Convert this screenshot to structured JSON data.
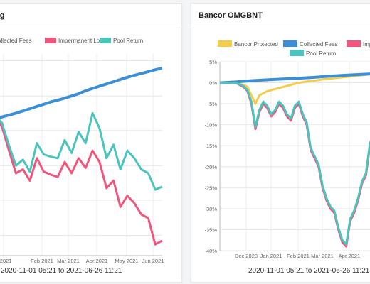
{
  "colors": {
    "bancor_protected": "#f5cc4a",
    "collected_fees": "#3b8fd9",
    "impermanent_loss": "#f2557c",
    "pool_return": "#4bc4bd"
  },
  "left_panel": {
    "title": "ng",
    "range_label": "2020-11-01 05:21 to 2021-06-26 11:21"
  },
  "right_panel": {
    "title": "Bancor OMGBNT",
    "range_label": "2020-11-01 05:21 to 2021-06-26 11:21"
  },
  "chart_data": [
    {
      "type": "line",
      "title": "ng",
      "legend": [
        "ollected Fees",
        "Impermanent Loss",
        "Pool Return"
      ],
      "x_ticks": [
        "n 2021",
        "Feb 2021",
        "Mar 2021",
        "Apr 2021",
        "May 2021",
        "Jun 2021"
      ],
      "series": [
        {
          "name": "Collected Fees",
          "color": "#3b8fd9",
          "x": [
            0,
            10,
            20,
            30,
            40,
            50,
            60,
            70,
            80,
            90,
            100,
            110,
            120,
            130,
            140,
            150,
            160,
            170,
            180,
            190,
            200,
            210,
            220,
            230,
            240
          ],
          "y": [
            0.2,
            0.5,
            0.75,
            1.0,
            1.3,
            1.6,
            1.9,
            2.2,
            2.5,
            2.75,
            3.0,
            3.3,
            3.6,
            4.0,
            4.3,
            4.6,
            4.9,
            5.2,
            5.5,
            5.8,
            6.05,
            6.3,
            6.55,
            6.8,
            7.0
          ]
        },
        {
          "name": "Impermanent Loss",
          "color": "#f2557c",
          "x": [
            0,
            10,
            20,
            30,
            40,
            50,
            60,
            70,
            80,
            90,
            100,
            110,
            120,
            130,
            140,
            150,
            160,
            170,
            180,
            190,
            200,
            210,
            220,
            230,
            240
          ],
          "y": [
            0.5,
            -0.8,
            -4.0,
            -7.0,
            -6.5,
            -8.0,
            -5.0,
            -6.8,
            -7.2,
            -7.5,
            -5.5,
            -7.0,
            -5.0,
            -6.3,
            -4.0,
            -5.5,
            -9.0,
            -8.0,
            -11.5,
            -10.0,
            -11.0,
            -12.5,
            -13.0,
            -16.5,
            -16.0
          ]
        },
        {
          "name": "Pool Return",
          "color": "#4bc4bd",
          "x": [
            0,
            10,
            20,
            30,
            40,
            50,
            60,
            70,
            80,
            90,
            100,
            110,
            120,
            130,
            140,
            150,
            160,
            170,
            180,
            190,
            200,
            210,
            220,
            230,
            240
          ],
          "y": [
            0.7,
            -0.3,
            -3.3,
            -6.0,
            -5.2,
            -6.8,
            -3.0,
            -4.5,
            -4.8,
            -5.0,
            -2.6,
            -4.3,
            -1.5,
            -3.0,
            1.0,
            -1.0,
            -5.0,
            -3.2,
            -6.5,
            -4.0,
            -5.0,
            -6.5,
            -7.0,
            -9.2,
            -8.8
          ]
        }
      ]
    },
    {
      "type": "line",
      "title": "Bancor OMGBNT",
      "legend": [
        "Bancor Protected",
        "Collected Fees",
        "Imp",
        "Pool Return"
      ],
      "y_ticks": [
        "5%",
        "0%",
        "-5%",
        "-10%",
        "-15%",
        "-20%",
        "-25%",
        "-30%",
        "-35%",
        "-40%"
      ],
      "ylim": [
        -40,
        5
      ],
      "x_ticks": [
        "Dec 2020",
        "Jan 2021",
        "Feb 2021",
        "Mar 2021",
        "Apr 2021"
      ],
      "series": [
        {
          "name": "Bancor Protected",
          "color": "#f5cc4a",
          "x": [
            0,
            10,
            20,
            30,
            35,
            40,
            45,
            50,
            60,
            70,
            80,
            90,
            100,
            110,
            120,
            130,
            140,
            150,
            160,
            170,
            180,
            190,
            200
          ],
          "y": [
            0.0,
            0.0,
            0.0,
            -0.5,
            -1.0,
            -3.0,
            -5.0,
            -3.0,
            -2.0,
            -1.5,
            -1.0,
            -0.5,
            0.0,
            0.3,
            0.5,
            0.8,
            1.0,
            1.2,
            1.4,
            1.6,
            1.8,
            2.0,
            2.2
          ]
        },
        {
          "name": "Collected Fees",
          "color": "#3b8fd9",
          "x": [
            0,
            20,
            40,
            60,
            80,
            100,
            120,
            140,
            160,
            180,
            200
          ],
          "y": [
            0.0,
            0.2,
            0.5,
            0.7,
            0.9,
            1.1,
            1.3,
            1.6,
            1.8,
            2.0,
            2.2
          ]
        },
        {
          "name": "Imp",
          "color": "#f2557c",
          "x": [
            0,
            10,
            20,
            30,
            35,
            40,
            45,
            50,
            55,
            60,
            65,
            70,
            75,
            80,
            85,
            90,
            95,
            100,
            105,
            110,
            115,
            120,
            125,
            130,
            135,
            140,
            145,
            150,
            155,
            160,
            165,
            170,
            175,
            180,
            185,
            190,
            195,
            200
          ],
          "y": [
            0.0,
            0.0,
            0.0,
            -1.0,
            -2.0,
            -5.0,
            -11.0,
            -7.0,
            -5.0,
            -6.0,
            -8.0,
            -7.0,
            -5.0,
            -6.0,
            -8.0,
            -9.0,
            -6.0,
            -5.0,
            -8.0,
            -10.0,
            -16.0,
            -18.0,
            -20.0,
            -25.0,
            -28.0,
            -30.0,
            -31.0,
            -35.0,
            -38.0,
            -39.0,
            -33.0,
            -31.0,
            -28.0,
            -24.0,
            -22.0,
            -15.0,
            -12.0,
            -14.0
          ]
        },
        {
          "name": "Pool Return",
          "color": "#4bc4bd",
          "x": [
            0,
            10,
            20,
            30,
            35,
            40,
            45,
            50,
            55,
            60,
            65,
            70,
            75,
            80,
            85,
            90,
            95,
            100,
            105,
            110,
            115,
            120,
            125,
            130,
            135,
            140,
            145,
            150,
            155,
            160,
            165,
            170,
            175,
            180,
            185,
            190,
            195,
            200
          ],
          "y": [
            0.0,
            0.0,
            0.0,
            -0.8,
            -1.8,
            -4.5,
            -10.5,
            -6.5,
            -4.5,
            -5.5,
            -7.5,
            -6.5,
            -4.5,
            -5.5,
            -7.5,
            -8.5,
            -5.5,
            -4.5,
            -7.5,
            -9.5,
            -15.5,
            -17.5,
            -19.5,
            -24.5,
            -27.5,
            -29.5,
            -30.5,
            -34.5,
            -37.5,
            -38.5,
            -32.5,
            -30.5,
            -27.5,
            -23.5,
            -21.5,
            -14.5,
            -11.5,
            -13.0
          ]
        }
      ]
    }
  ]
}
